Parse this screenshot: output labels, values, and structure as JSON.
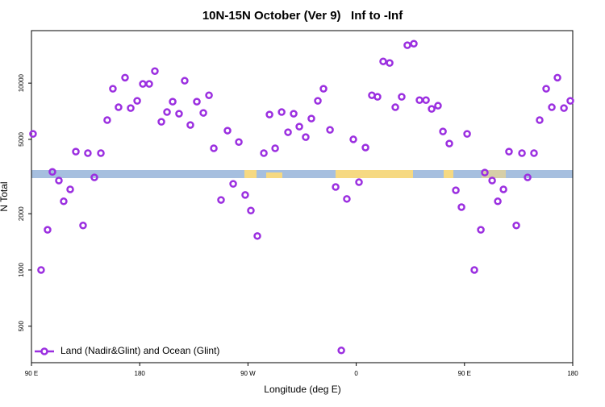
{
  "chart_data": {
    "type": "scatter",
    "title": "10N-15N October (Ver 9)   Inf to -Inf",
    "x_label": "Longitude (deg E)",
    "y_label": "N Total",
    "x": [
      91.3,
      98,
      103.4,
      107.4,
      112.8,
      116.8,
      122.2,
      126.9,
      132.9,
      136.9,
      142.3,
      147.7,
      153,
      157.7,
      162.4,
      167.8,
      172.5,
      177.9,
      182.6,
      187.9,
      192.6,
      198,
      202.7,
      207.4,
      212.7,
      217.4,
      222.1,
      227.5,
      232.9,
      237.6,
      241.6,
      247.6,
      253,
      257.7,
      262.4,
      267.7,
      272.4,
      277.8,
      283.2,
      287.9,
      292.6,
      298,
      303.3,
      308,
      312.7,
      318,
      322.7,
      328.1,
      332.8,
      338.2,
      342.9,
      347.6,
      352.2,
      357.6,
      362.3,
      367.7,
      373,
      377.7,
      382.4,
      387.8,
      392.5,
      397.8,
      402.5,
      407.9,
      412.6,
      418,
      422.7,
      428,
      432.1,
      437.4,
      442.8,
      447.5,
      452.2,
      458.2,
      463.6,
      466.9,
      473,
      477.7,
      482.4,
      487,
      493.1,
      497.8,
      502.5,
      507.8,
      512.5,
      517.9,
      522.6,
      527.3,
      532.7,
      538
    ],
    "series": [
      {
        "name": "Land (Nadir&Glint) and Ocean (Glint)",
        "color": "#9b2fe0",
        "values": [
          5350,
          1000,
          1640,
          3350,
          3010,
          2330,
          2700,
          4300,
          1730,
          4220,
          3130,
          4220,
          6340,
          9330,
          7430,
          10700,
          7350,
          8040,
          9900,
          9900,
          11600,
          6210,
          7000,
          7960,
          6860,
          10300,
          5970,
          7960,
          6930,
          8610,
          4480,
          2370,
          5570,
          2890,
          4840,
          2520,
          2080,
          1520,
          4220,
          6790,
          4480,
          7000,
          5460,
          6860,
          5850,
          5140,
          6460,
          8040,
          9330,
          5620,
          2780,
          371,
          2400,
          5000,
          2950,
          4520,
          8610,
          8450,
          13070,
          12820,
          7430,
          8450,
          15950,
          16260,
          8110,
          8110,
          7280,
          7570,
          5510,
          4750,
          2670,
          2170,
          5350,
          1000,
          1640,
          3320,
          3010,
          2330,
          2700,
          4300,
          1730,
          4220,
          3130,
          4220,
          6340,
          9330,
          7430,
          10700,
          7350,
          8040
        ]
      }
    ],
    "xlim": [
      90,
      540
    ],
    "xticks": [
      {
        "value": 90,
        "label": "90 E"
      },
      180,
      {
        "value": 270,
        "label": "90 W"
      },
      {
        "value": 360,
        "label": "0"
      },
      {
        "value": 450,
        "label": "90 E"
      },
      {
        "value": 540,
        "label": "180"
      }
    ],
    "ylim": [
      319,
      19100
    ],
    "y_scale": "log",
    "yticks": [
      500,
      1000,
      2000,
      5000,
      10000
    ],
    "legend": "bottom-left"
  }
}
